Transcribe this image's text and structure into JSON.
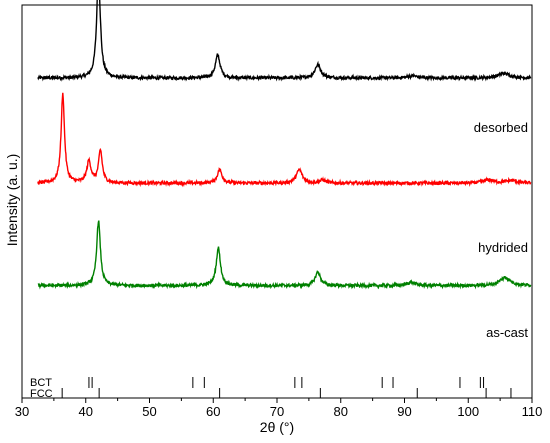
{
  "chart_data": {
    "type": "line",
    "title": "",
    "xlabel": "2θ (°)",
    "ylabel": "Intensity (a. u.)",
    "xlim": [
      30,
      110
    ],
    "xticks": [
      30,
      40,
      50,
      60,
      70,
      80,
      90,
      100,
      110
    ],
    "ylim": [
      -0.35,
      1.0
    ],
    "grid": false,
    "legend": "none",
    "series": [
      {
        "name": "desorbed",
        "color": "#000000",
        "baseline": 0.77,
        "peaks": [
          {
            "pos": 42.0,
            "height": 0.38,
            "width": 0.35
          },
          {
            "pos": 60.7,
            "height": 0.085,
            "width": 0.45
          },
          {
            "pos": 76.4,
            "height": 0.05,
            "width": 0.55
          },
          {
            "pos": 91.3,
            "height": 0.008,
            "width": 0.9
          },
          {
            "pos": 105.6,
            "height": 0.017,
            "width": 1.1
          }
        ]
      },
      {
        "name": "hydrided",
        "color": "#ff0000",
        "baseline": 0.38,
        "peaks": [
          {
            "pos": 36.4,
            "height": 0.33,
            "width": 0.32
          },
          {
            "pos": 40.5,
            "height": 0.08,
            "width": 0.4
          },
          {
            "pos": 42.3,
            "height": 0.12,
            "width": 0.35
          },
          {
            "pos": 61.0,
            "height": 0.05,
            "width": 0.45
          },
          {
            "pos": 73.5,
            "height": 0.05,
            "width": 0.55
          },
          {
            "pos": 77.2,
            "height": 0.012,
            "width": 0.5
          },
          {
            "pos": 103.2,
            "height": 0.012,
            "width": 1.0
          },
          {
            "pos": 106.8,
            "height": 0.01,
            "width": 1.0
          }
        ]
      },
      {
        "name": "as-cast",
        "color": "#008000",
        "baseline": 0.0,
        "peaks": [
          {
            "pos": 42.0,
            "height": 0.24,
            "width": 0.35
          },
          {
            "pos": 60.8,
            "height": 0.14,
            "width": 0.4
          },
          {
            "pos": 76.4,
            "height": 0.05,
            "width": 0.5
          },
          {
            "pos": 91.0,
            "height": 0.012,
            "width": 0.8
          },
          {
            "pos": 105.8,
            "height": 0.03,
            "width": 1.0
          }
        ]
      }
    ],
    "reference_patterns": [
      {
        "name": "BCT",
        "positions": [
          40.5,
          41.0,
          56.8,
          58.6,
          72.8,
          73.9,
          86.5,
          88.2,
          98.7,
          101.9,
          102.4
        ]
      },
      {
        "name": "FCC",
        "positions": [
          36.3,
          42.1,
          61.0,
          76.8,
          92.0,
          102.8,
          106.7
        ]
      }
    ]
  }
}
